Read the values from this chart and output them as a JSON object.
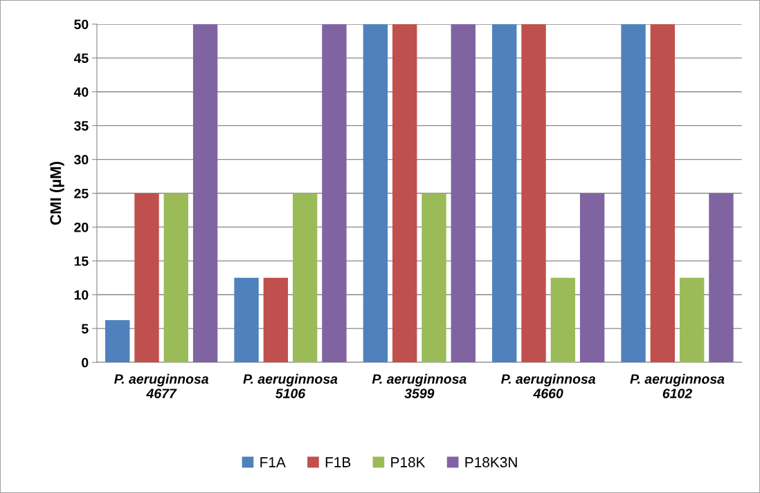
{
  "chart_data": {
    "type": "bar",
    "ylabel": "CMI (µM)",
    "categories": [
      "P. aeruginnosa\n4677",
      "P. aeruginnosa\n5106",
      "P. aeruginnosa\n3599",
      "P. aeruginnosa\n4660",
      "P. aeruginnosa\n6102"
    ],
    "series": [
      {
        "name": "F1A",
        "color": "#4f81bd",
        "values": [
          6.25,
          12.5,
          50,
          50,
          50
        ]
      },
      {
        "name": "F1B",
        "color": "#c0504d",
        "values": [
          25,
          12.5,
          50,
          50,
          50
        ]
      },
      {
        "name": "P18K",
        "color": "#9bbb59",
        "values": [
          25,
          25,
          25,
          12.5,
          12.5
        ]
      },
      {
        "name": "P18K3N",
        "color": "#8064a2",
        "values": [
          50,
          50,
          50,
          25,
          25
        ]
      }
    ],
    "ylim": [
      0,
      50
    ],
    "yticks": [
      0,
      5,
      10,
      15,
      20,
      25,
      30,
      35,
      40,
      45,
      50
    ],
    "grid": "y",
    "legend": "bottom"
  }
}
